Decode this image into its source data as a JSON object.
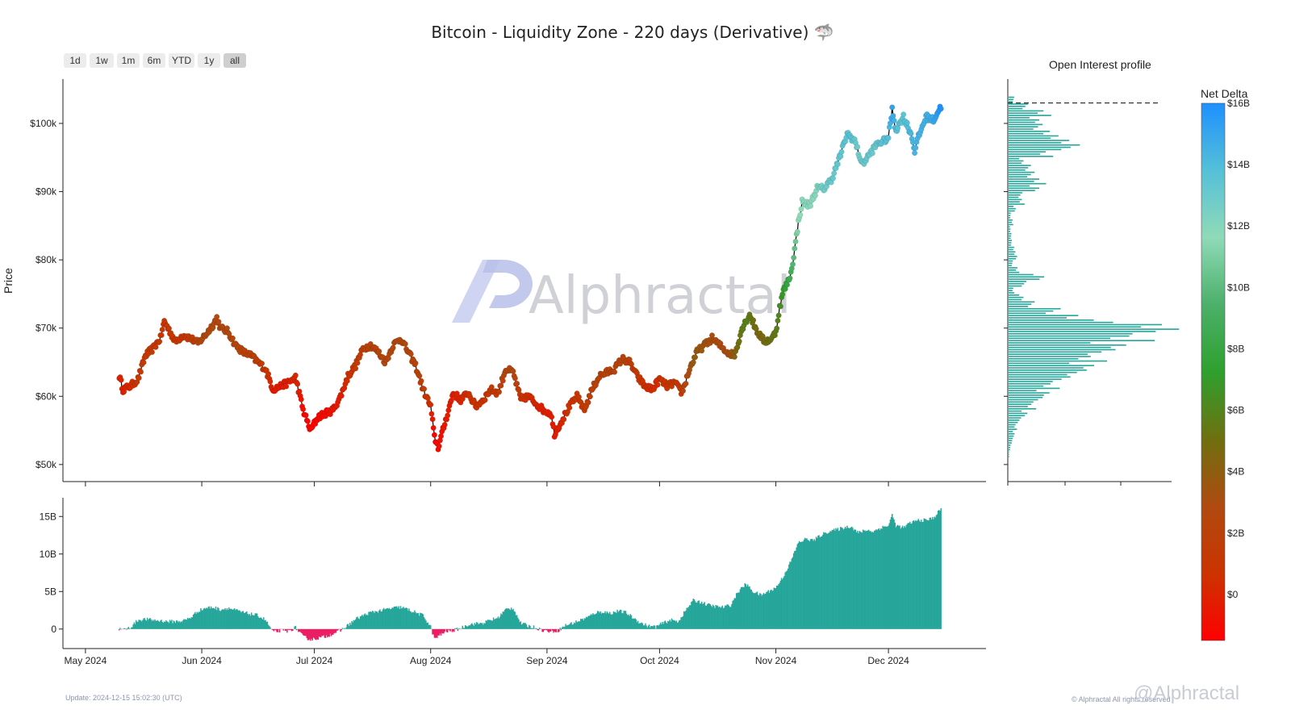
{
  "title": "Bitcoin - Liquidity Zone - 220 days (Derivative) 🦈",
  "range_buttons": [
    "1d",
    "1w",
    "1m",
    "6m",
    "YTD",
    "1y",
    "all"
  ],
  "active_range": "all",
  "watermark": "Alphractal",
  "footer": {
    "update": "Update: 2024-12-15 15:02:30 (UTC)",
    "copyright": "© Alphractal All rights reserved",
    "logo": "@Alphractal"
  },
  "colors": {
    "line": "#000000",
    "delta_pos": "#26a69a",
    "delta_neg": "#e91e63",
    "oi_bar": "#26a69a",
    "gradient_stops": [
      "#ff0000",
      "#cc3300",
      "#b04a10",
      "#6e7010",
      "#2ea02e",
      "#4cb06a",
      "#8fdab8",
      "#55c0d8",
      "#1e90ff"
    ]
  },
  "chart_data": [
    {
      "id": "price",
      "type": "line",
      "ylabel": "Price",
      "x_ticks": [
        "May 2024",
        "Jun 2024",
        "Jul 2024",
        "Aug 2024",
        "Sep 2024",
        "Oct 2024",
        "Nov 2024",
        "Dec 2024"
      ],
      "x_tick_days": [
        0,
        31,
        61,
        92,
        123,
        153,
        184,
        214
      ],
      "y_ticks": [
        "$50k",
        "$60k",
        "$70k",
        "$80k",
        "$90k",
        "$100k"
      ],
      "y_tick_values": [
        50000,
        60000,
        70000,
        80000,
        90000,
        100000
      ],
      "ylim": [
        47500,
        106500
      ],
      "xlim": [
        -6,
        240
      ],
      "x_start_day": 9,
      "x_end_day": 228,
      "anchors": [
        [
          9,
          63000
        ],
        [
          10,
          61000
        ],
        [
          12,
          61500
        ],
        [
          14,
          62500
        ],
        [
          16,
          66000
        ],
        [
          18,
          67000
        ],
        [
          20,
          68500
        ],
        [
          21,
          71000
        ],
        [
          22,
          70000
        ],
        [
          24,
          68000
        ],
        [
          26,
          69000
        ],
        [
          28,
          68500
        ],
        [
          30,
          67800
        ],
        [
          32,
          69000
        ],
        [
          34,
          70500
        ],
        [
          35,
          71500
        ],
        [
          36,
          70000
        ],
        [
          38,
          69500
        ],
        [
          40,
          67500
        ],
        [
          42,
          66500
        ],
        [
          44,
          66000
        ],
        [
          46,
          65000
        ],
        [
          48,
          64000
        ],
        [
          50,
          61000
        ],
        [
          52,
          61500
        ],
        [
          54,
          62000
        ],
        [
          56,
          62800
        ],
        [
          58,
          58000
        ],
        [
          60,
          55000
        ],
        [
          62,
          57000
        ],
        [
          64,
          57500
        ],
        [
          66,
          58000
        ],
        [
          68,
          60000
        ],
        [
          70,
          63000
        ],
        [
          72,
          64500
        ],
        [
          74,
          67000
        ],
        [
          76,
          67500
        ],
        [
          78,
          66500
        ],
        [
          80,
          65000
        ],
        [
          82,
          67500
        ],
        [
          84,
          68500
        ],
        [
          86,
          66500
        ],
        [
          88,
          64500
        ],
        [
          90,
          61000
        ],
        [
          92,
          58500
        ],
        [
          93,
          54000
        ],
        [
          94,
          52500
        ],
        [
          96,
          56500
        ],
        [
          98,
          60500
        ],
        [
          100,
          59500
        ],
        [
          102,
          60500
        ],
        [
          104,
          58500
        ],
        [
          106,
          59500
        ],
        [
          108,
          61000
        ],
        [
          110,
          60500
        ],
        [
          112,
          64000
        ],
        [
          114,
          63500
        ],
        [
          116,
          59500
        ],
        [
          118,
          60000
        ],
        [
          120,
          59000
        ],
        [
          122,
          58000
        ],
        [
          124,
          57500
        ],
        [
          125,
          54500
        ],
        [
          127,
          56500
        ],
        [
          129,
          58500
        ],
        [
          131,
          60000
        ],
        [
          133,
          58000
        ],
        [
          135,
          61000
        ],
        [
          137,
          63000
        ],
        [
          139,
          63500
        ],
        [
          141,
          64000
        ],
        [
          143,
          65500
        ],
        [
          145,
          65000
        ],
        [
          147,
          63000
        ],
        [
          149,
          61500
        ],
        [
          151,
          61000
        ],
        [
          153,
          62500
        ],
        [
          155,
          61500
        ],
        [
          157,
          62000
        ],
        [
          159,
          60500
        ],
        [
          161,
          64000
        ],
        [
          163,
          66500
        ],
        [
          165,
          67500
        ],
        [
          167,
          68500
        ],
        [
          169,
          67500
        ],
        [
          171,
          66500
        ],
        [
          173,
          66000
        ],
        [
          175,
          70000
        ],
        [
          177,
          72000
        ],
        [
          179,
          69500
        ],
        [
          181,
          68000
        ],
        [
          183,
          68500
        ],
        [
          184,
          69500
        ],
        [
          185,
          73000
        ],
        [
          186,
          75500
        ],
        [
          187,
          76500
        ],
        [
          188,
          78000
        ],
        [
          189,
          81500
        ],
        [
          190,
          85500
        ],
        [
          191,
          88500
        ],
        [
          193,
          88000
        ],
        [
          195,
          90500
        ],
        [
          197,
          90500
        ],
        [
          199,
          92000
        ],
        [
          201,
          95000
        ],
        [
          203,
          98500
        ],
        [
          205,
          97500
        ],
        [
          207,
          94000
        ],
        [
          209,
          95500
        ],
        [
          211,
          97000
        ],
        [
          213,
          97500
        ],
        [
          214,
          98000
        ],
        [
          215,
          102000
        ],
        [
          216,
          99000
        ],
        [
          218,
          101000
        ],
        [
          220,
          98500
        ],
        [
          221,
          96000
        ],
        [
          222,
          98000
        ],
        [
          224,
          101000
        ],
        [
          226,
          100500
        ],
        [
          228,
          102500
        ]
      ],
      "delta_anchors": [
        [
          9,
          0
        ],
        [
          10,
          -0.1
        ],
        [
          12,
          0.2
        ],
        [
          14,
          1.2
        ],
        [
          16,
          1.3
        ],
        [
          18,
          1.2
        ],
        [
          20,
          1.1
        ],
        [
          22,
          1.0
        ],
        [
          24,
          1.0
        ],
        [
          26,
          1.1
        ],
        [
          28,
          1.5
        ],
        [
          30,
          2.4
        ],
        [
          32,
          2.8
        ],
        [
          34,
          2.9
        ],
        [
          36,
          2.6
        ],
        [
          38,
          2.8
        ],
        [
          40,
          2.5
        ],
        [
          42,
          2.2
        ],
        [
          44,
          2.0
        ],
        [
          46,
          1.8
        ],
        [
          48,
          1.2
        ],
        [
          50,
          -0.4
        ],
        [
          52,
          -0.2
        ],
        [
          54,
          -0.3
        ],
        [
          56,
          0.2
        ],
        [
          58,
          -1.0
        ],
        [
          60,
          -1.4
        ],
        [
          62,
          -1.2
        ],
        [
          64,
          -1.0
        ],
        [
          66,
          -0.6
        ],
        [
          68,
          -0.2
        ],
        [
          70,
          0.5
        ],
        [
          72,
          1.3
        ],
        [
          74,
          1.8
        ],
        [
          76,
          2.2
        ],
        [
          78,
          2.4
        ],
        [
          80,
          2.6
        ],
        [
          82,
          2.8
        ],
        [
          84,
          2.9
        ],
        [
          86,
          2.6
        ],
        [
          88,
          2.2
        ],
        [
          90,
          1.8
        ],
        [
          92,
          0.3
        ],
        [
          93,
          -1.3
        ],
        [
          94,
          -1.0
        ],
        [
          96,
          -0.3
        ],
        [
          98,
          -0.2
        ],
        [
          100,
          0.1
        ],
        [
          102,
          0.6
        ],
        [
          104,
          0.7
        ],
        [
          106,
          0.8
        ],
        [
          108,
          1.2
        ],
        [
          110,
          1.5
        ],
        [
          112,
          2.6
        ],
        [
          114,
          2.8
        ],
        [
          116,
          0.8
        ],
        [
          118,
          0.4
        ],
        [
          120,
          0.2
        ],
        [
          122,
          -0.2
        ],
        [
          124,
          -0.3
        ],
        [
          126,
          -0.2
        ],
        [
          128,
          0.5
        ],
        [
          130,
          0.8
        ],
        [
          132,
          1.2
        ],
        [
          134,
          1.6
        ],
        [
          136,
          2.2
        ],
        [
          138,
          2.3
        ],
        [
          140,
          2.1
        ],
        [
          142,
          2.4
        ],
        [
          144,
          2.2
        ],
        [
          146,
          1.5
        ],
        [
          148,
          0.8
        ],
        [
          150,
          0.4
        ],
        [
          152,
          0.3
        ],
        [
          154,
          0.8
        ],
        [
          156,
          1.2
        ],
        [
          158,
          1.0
        ],
        [
          160,
          2.5
        ],
        [
          162,
          3.8
        ],
        [
          164,
          3.6
        ],
        [
          166,
          3.2
        ],
        [
          168,
          3.0
        ],
        [
          170,
          2.9
        ],
        [
          172,
          3.2
        ],
        [
          174,
          5.0
        ],
        [
          176,
          6.0
        ],
        [
          178,
          5.0
        ],
        [
          180,
          4.5
        ],
        [
          182,
          5.0
        ],
        [
          184,
          5.5
        ],
        [
          186,
          7.0
        ],
        [
          188,
          9.0
        ],
        [
          190,
          11.5
        ],
        [
          192,
          12.0
        ],
        [
          194,
          11.8
        ],
        [
          196,
          12.5
        ],
        [
          198,
          13.0
        ],
        [
          200,
          13.2
        ],
        [
          202,
          13.5
        ],
        [
          204,
          13.7
        ],
        [
          206,
          12.8
        ],
        [
          208,
          13.2
        ],
        [
          210,
          13.0
        ],
        [
          212,
          13.5
        ],
        [
          214,
          13.8
        ],
        [
          215,
          15.2
        ],
        [
          216,
          13.8
        ],
        [
          218,
          13.5
        ],
        [
          220,
          14.2
        ],
        [
          222,
          14.5
        ],
        [
          224,
          14.5
        ],
        [
          226,
          14.8
        ],
        [
          228,
          16.0
        ]
      ]
    },
    {
      "id": "net_delta",
      "type": "area",
      "y_ticks": [
        "0",
        "5B",
        "10B",
        "15B"
      ],
      "y_tick_values": [
        0,
        5,
        10,
        15
      ],
      "ylim": [
        -2.6,
        17.5
      ],
      "x_tick_labels": [
        "May 2024",
        "Jun 2024",
        "Jul 2024",
        "Aug 2024",
        "Sep 2024",
        "Oct 2024",
        "Nov 2024",
        "Dec 2024"
      ]
    },
    {
      "id": "oi_profile",
      "type": "bar",
      "title": "Open Interest profile",
      "bin_width": 1000,
      "marker_price": 103000,
      "bins": [
        [
          51000,
          0.3
        ],
        [
          52000,
          1.2
        ],
        [
          53000,
          2.2
        ],
        [
          54000,
          3.2
        ],
        [
          55000,
          4.5
        ],
        [
          56000,
          7.0
        ],
        [
          57000,
          10.5
        ],
        [
          58000,
          15.5
        ],
        [
          59000,
          20.0
        ],
        [
          60000,
          24.0
        ],
        [
          61000,
          30.0
        ],
        [
          62000,
          38.0
        ],
        [
          63000,
          42.0
        ],
        [
          64000,
          46.0
        ],
        [
          65000,
          53.0
        ],
        [
          66000,
          60.0
        ],
        [
          67000,
          66.0
        ],
        [
          68000,
          82.0
        ],
        [
          69000,
          100.0
        ],
        [
          70000,
          90.0
        ],
        [
          71000,
          50.0
        ],
        [
          72000,
          32.0
        ],
        [
          73000,
          14.0
        ],
        [
          74000,
          8.0
        ],
        [
          75000,
          3.0
        ],
        [
          76000,
          10.0
        ],
        [
          77000,
          20.0
        ],
        [
          78000,
          6.0
        ],
        [
          79000,
          2.5
        ],
        [
          80000,
          5.0
        ],
        [
          81000,
          4.0
        ],
        [
          82000,
          2.0
        ],
        [
          83000,
          1.5
        ],
        [
          84000,
          1.0
        ],
        [
          85000,
          2.5
        ],
        [
          86000,
          1.2
        ],
        [
          87000,
          4.0
        ],
        [
          88000,
          9.0
        ],
        [
          89000,
          8.0
        ],
        [
          90000,
          18.0
        ],
        [
          91000,
          22.0
        ],
        [
          92000,
          16.0
        ],
        [
          93000,
          12.0
        ],
        [
          94000,
          8.0
        ],
        [
          95000,
          24.0
        ],
        [
          96000,
          40.0
        ],
        [
          97000,
          34.0
        ],
        [
          98000,
          28.0
        ],
        [
          99000,
          20.0
        ],
        [
          100000,
          18.0
        ],
        [
          101000,
          25.0
        ],
        [
          102000,
          12.0
        ],
        [
          103000,
          3.0
        ]
      ],
      "x_ticks": [
        "",
        "",
        ""
      ]
    },
    {
      "id": "colorbar",
      "type": "heatmap",
      "title": "Net Delta",
      "ticks": [
        "$0",
        "$2B",
        "$4B",
        "$6B",
        "$8B",
        "$10B",
        "$12B",
        "$14B",
        "$16B"
      ],
      "tick_values": [
        0,
        2,
        4,
        6,
        8,
        10,
        12,
        14,
        16
      ],
      "vmin": -1.5,
      "vmax": 16.0
    }
  ]
}
